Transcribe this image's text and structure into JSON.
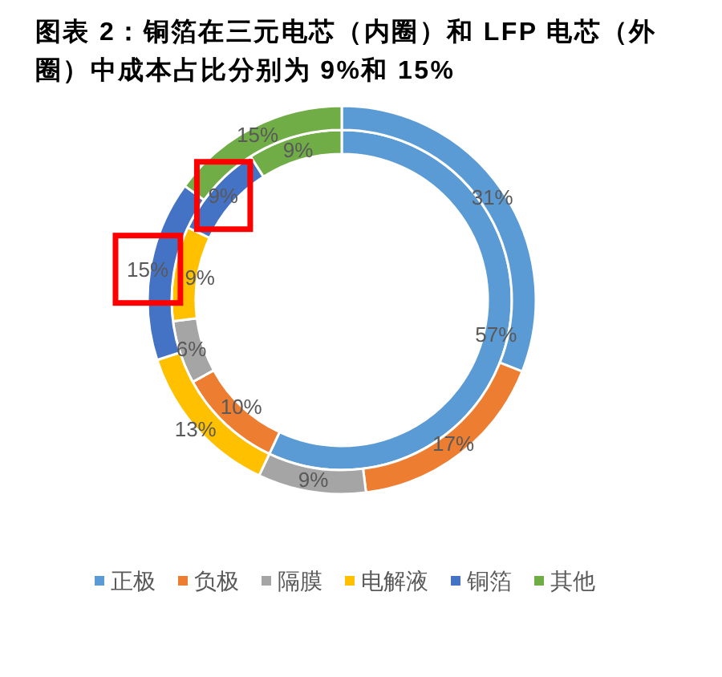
{
  "chart_data": {
    "type": "donut",
    "title": "图表 2：铜箔在三元电芯（内圈）和 LFP 电芯（外圈）中成本占比分别为 9%和 15%",
    "categories": [
      "正极",
      "负极",
      "隔膜",
      "电解液",
      "铜箔",
      "其他"
    ],
    "colors": [
      "#5b9bd5",
      "#ed7d31",
      "#a5a5a5",
      "#ffc000",
      "#4472c4",
      "#70ad47"
    ],
    "series": [
      {
        "values": [
          57,
          10,
          6,
          9,
          9,
          9
        ],
        "value_labels": [
          "57%",
          "10%",
          "6%",
          "9%",
          "9%",
          "9%"
        ]
      },
      {
        "values": [
          31,
          17,
          9,
          13,
          15,
          15
        ],
        "value_labels": [
          "31%",
          "17%",
          "9%",
          "13%",
          "15%",
          "15%"
        ]
      }
    ],
    "legend": "bottom"
  }
}
